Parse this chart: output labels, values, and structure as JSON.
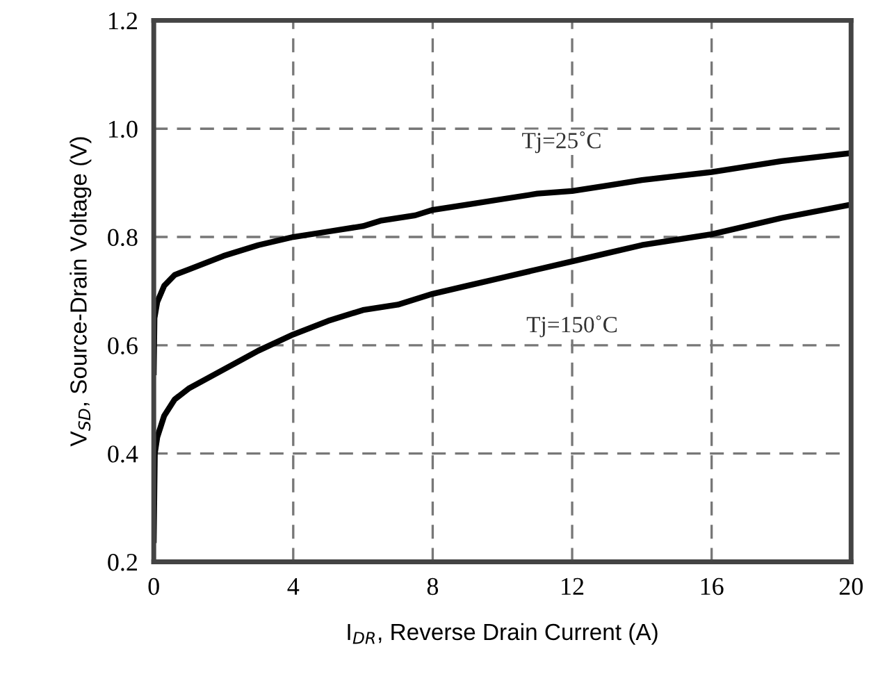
{
  "chart_data": {
    "type": "line",
    "xlabel": "I$_{DR}$, Reverse Drain Current (A)",
    "ylabel": "V$_{SD}$, Source-Drain Voltage (V)",
    "xlim": [
      0,
      20
    ],
    "ylim": [
      0.2,
      1.2
    ],
    "xticks": [
      0,
      4,
      8,
      12,
      16,
      20
    ],
    "yticks": [
      0.2,
      0.4,
      0.6,
      0.8,
      {
        "value": 1.0,
        "label": "1.0"
      },
      1.2
    ],
    "grid": true,
    "line_style": "solid",
    "marker": "none",
    "series": [
      {
        "color": "#000000",
        "x": [
          0,
          0.02,
          0.1,
          0.3,
          0.6,
          1,
          2,
          3,
          4,
          5,
          6,
          6.5,
          7.5,
          8,
          9,
          10,
          11,
          12,
          13,
          14,
          16,
          18,
          20
        ],
        "values": [
          0.55,
          0.65,
          0.68,
          0.71,
          0.73,
          0.74,
          0.765,
          0.785,
          0.8,
          0.81,
          0.82,
          0.83,
          0.84,
          0.85,
          0.86,
          0.87,
          0.88,
          0.885,
          0.895,
          0.905,
          0.92,
          0.94,
          0.955
        ]
      },
      {
        "color": "#000000",
        "x": [
          0,
          0.03,
          0.1,
          0.3,
          0.6,
          1,
          2,
          3,
          4,
          5,
          6,
          7,
          8,
          9,
          10,
          11,
          12,
          13,
          14,
          16,
          18,
          20
        ],
        "values": [
          0.24,
          0.4,
          0.43,
          0.47,
          0.5,
          0.52,
          0.555,
          0.59,
          0.62,
          0.645,
          0.665,
          0.675,
          0.695,
          0.71,
          0.725,
          0.74,
          0.755,
          0.77,
          0.785,
          0.805,
          0.835,
          0.86
        ]
      }
    ],
    "annotations": [
      "Tj=25˚C",
      "Tj=150˚C"
    ]
  }
}
